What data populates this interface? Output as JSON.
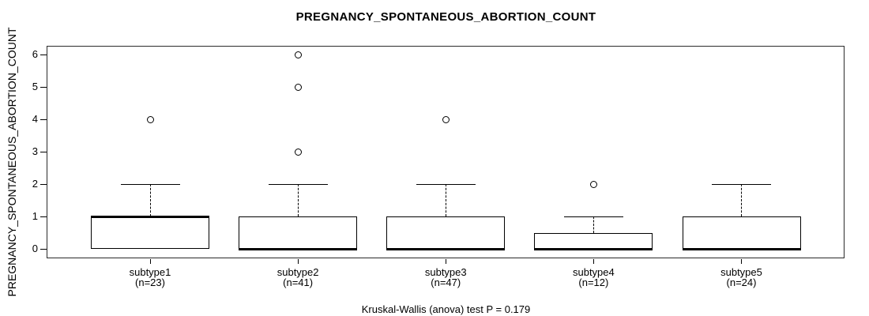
{
  "colors": {
    "line": "#000000",
    "background": "#ffffff"
  },
  "chart_data": {
    "type": "boxplot",
    "title": "PREGNANCY_SPONTANEOUS_ABORTION_COUNT",
    "ylabel": "PREGNANCY_SPONTANEOUS_ABORTION_COUNT",
    "xlabel": "",
    "footer": "Kruskal-Wallis (anova) test P = 0.179",
    "ylim": [
      0,
      6
    ],
    "yticks": [
      0,
      1,
      2,
      3,
      4,
      5,
      6
    ],
    "grid": false,
    "legend": false,
    "groups": [
      {
        "label": "subtype1",
        "n_label": "(n=23)",
        "n": 23,
        "q1": 0,
        "median": 1,
        "q3": 1,
        "whisker_low": 0,
        "whisker_high": 2,
        "outliers": [
          4
        ]
      },
      {
        "label": "subtype2",
        "n_label": "(n=41)",
        "n": 41,
        "q1": 0,
        "median": 0,
        "q3": 1,
        "whisker_low": 0,
        "whisker_high": 2,
        "outliers": [
          3,
          5,
          6
        ]
      },
      {
        "label": "subtype3",
        "n_label": "(n=47)",
        "n": 47,
        "q1": 0,
        "median": 0,
        "q3": 1,
        "whisker_low": 0,
        "whisker_high": 2,
        "outliers": [
          4
        ]
      },
      {
        "label": "subtype4",
        "n_label": "(n=12)",
        "n": 12,
        "q1": 0,
        "median": 0,
        "q3": 0.5,
        "whisker_low": 0,
        "whisker_high": 1,
        "outliers": [
          2
        ]
      },
      {
        "label": "subtype5",
        "n_label": "(n=24)",
        "n": 24,
        "q1": 0,
        "median": 0,
        "q3": 1,
        "whisker_low": 0,
        "whisker_high": 2,
        "outliers": []
      }
    ]
  }
}
